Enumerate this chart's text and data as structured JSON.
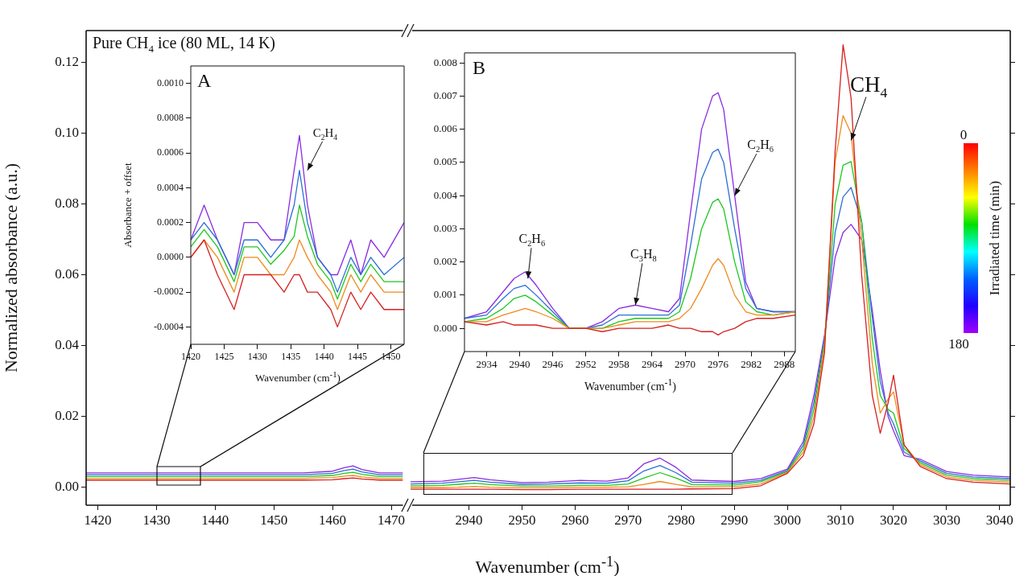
{
  "chart_data": [
    {
      "type": "line",
      "ylabel": "Normalized absorbance (a.u.)",
      "xlim": [
        1418,
        1472
      ],
      "ylim": [
        -0.005,
        0.129
      ],
      "xticks": [
        1420,
        1430,
        1440,
        1450,
        1460,
        1470
      ],
      "yticks": [
        {
          "value": 0,
          "label": "0.00"
        },
        {
          "value": 0.02,
          "label": "0.02"
        },
        {
          "value": 0.04,
          "label": "0.04"
        },
        {
          "value": 0.06,
          "label": "0.06"
        },
        {
          "value": 0.08,
          "label": "0.08"
        },
        {
          "value": 0.1,
          "label": "0.10"
        },
        {
          "value": 0.12,
          "label": "0.12"
        }
      ],
      "annotations": [
        "Pure CH$_{4}$ ice (80 ML, 14 K)"
      ],
      "series": [
        {
          "color": "#d62020",
          "x": [
            1418,
            1425,
            1435,
            1445,
            1455,
            1460,
            1462,
            1463.5,
            1465,
            1468,
            1472
          ],
          "values": [
            0.0021,
            0.0021,
            0.0021,
            0.0021,
            0.0021,
            0.0022,
            0.0025,
            0.0027,
            0.0024,
            0.0021,
            0.0021
          ]
        },
        {
          "color": "#f08a1c",
          "x": [
            1418,
            1425,
            1435,
            1445,
            1455,
            1460,
            1462,
            1463.5,
            1465,
            1468,
            1472
          ],
          "values": [
            0.0026,
            0.0026,
            0.0026,
            0.0026,
            0.0026,
            0.0028,
            0.0032,
            0.0034,
            0.003,
            0.0026,
            0.0026
          ]
        },
        {
          "color": "#1ec81e",
          "x": [
            1418,
            1425,
            1435,
            1445,
            1455,
            1460,
            1462,
            1463.5,
            1465,
            1468,
            1472
          ],
          "values": [
            0.0031,
            0.0031,
            0.0031,
            0.0031,
            0.0031,
            0.0034,
            0.004,
            0.0043,
            0.0037,
            0.0031,
            0.0031
          ]
        },
        {
          "color": "#2b6fd6",
          "x": [
            1418,
            1425,
            1435,
            1445,
            1455,
            1460,
            1462,
            1463.5,
            1465,
            1468,
            1472
          ],
          "values": [
            0.0036,
            0.0036,
            0.0036,
            0.0036,
            0.0036,
            0.004,
            0.0048,
            0.0052,
            0.0044,
            0.0036,
            0.0036
          ]
        },
        {
          "color": "#8a2be2",
          "x": [
            1418,
            1425,
            1435,
            1445,
            1455,
            1460,
            1462,
            1463.5,
            1465,
            1468,
            1472
          ],
          "values": [
            0.0041,
            0.0041,
            0.0041,
            0.0041,
            0.0041,
            0.0046,
            0.0056,
            0.0061,
            0.0051,
            0.0041,
            0.0041
          ]
        }
      ]
    },
    {
      "type": "line",
      "xlabel": "Wavenumber (cm$^{-1}$)",
      "tick_labels": "x",
      "clabel": "Irradiated time (min)",
      "xlim": [
        2929,
        3042
      ],
      "ylim": [
        -0.005,
        0.129
      ],
      "xticks": [
        2940,
        2950,
        2960,
        2970,
        2980,
        2990,
        3000,
        3010,
        3020,
        3030,
        3040
      ],
      "yticks": [
        0,
        0.02,
        0.04,
        0.06,
        0.08,
        0.1,
        0.12
      ],
      "annotations": [
        {
          "text": "CH$_{4}$",
          "x": 3012,
          "y": 0.098
        },
        "0",
        "180"
      ],
      "series": [
        {
          "color": "#d62020",
          "x": [
            2929,
            2935,
            2938,
            2941,
            2944,
            2950,
            2955,
            2961,
            2966,
            2970,
            2973,
            2976,
            2979,
            2982,
            2990,
            2995,
            3000,
            3003,
            3005,
            3007,
            3009,
            3010.5,
            3012,
            3014,
            3016,
            3017.5,
            3019,
            3020,
            3022,
            3025,
            3030,
            3035,
            3042
          ],
          "values": [
            -0.0005,
            -0.0005,
            -0.0005,
            -0.0005,
            -0.0005,
            -0.0006,
            -0.0006,
            -0.0005,
            -0.0005,
            -0.0005,
            -0.0005,
            -0.0005,
            -0.0005,
            -0.0004,
            -0.0003,
            0.0005,
            0.004,
            0.009,
            0.018,
            0.038,
            0.095,
            0.125,
            0.11,
            0.06,
            0.026,
            0.0153,
            0.024,
            0.0317,
            0.012,
            0.006,
            0.0025,
            0.0015,
            0.001
          ]
        },
        {
          "color": "#f08a1c",
          "x": [
            2929,
            2935,
            2938,
            2941,
            2944,
            2950,
            2955,
            2961,
            2966,
            2970,
            2973,
            2976,
            2979,
            2982,
            2990,
            2995,
            3000,
            3003,
            3005,
            3007,
            3009,
            3010.5,
            3012,
            3014,
            3016,
            3017.5,
            3019,
            3020,
            3022,
            3025,
            3030,
            3035,
            3042
          ],
          "values": [
            0,
            0,
            0.0001,
            0.0003,
            0.0001,
            -0.0001,
            -0.0001,
            0.0001,
            0.0001,
            0.0002,
            0.0009,
            0.0017,
            0.0009,
            0.0002,
            0.0002,
            0.001,
            0.0043,
            0.01,
            0.02,
            0.04,
            0.092,
            0.105,
            0.1,
            0.07,
            0.035,
            0.021,
            0.025,
            0.027,
            0.012,
            0.0065,
            0.003,
            0.002,
            0.0015
          ]
        },
        {
          "color": "#1ec81e",
          "x": [
            2929,
            2935,
            2938,
            2941,
            2944,
            2950,
            2955,
            2961,
            2966,
            2970,
            2973,
            2976,
            2979,
            2982,
            2990,
            2995,
            3000,
            3003,
            3005,
            3007,
            3009,
            3010.5,
            3012,
            3014,
            3016,
            3017.5,
            3019,
            3020,
            3022,
            3025,
            3030,
            3035,
            3042
          ],
          "values": [
            0.0005,
            0.0006,
            0.0009,
            0.0012,
            0.0008,
            0.0004,
            0.0004,
            0.0006,
            0.0006,
            0.001,
            0.0027,
            0.0042,
            0.0027,
            0.0008,
            0.0007,
            0.0016,
            0.0045,
            0.011,
            0.022,
            0.041,
            0.08,
            0.091,
            0.092,
            0.075,
            0.042,
            0.026,
            0.022,
            0.021,
            0.011,
            0.007,
            0.0035,
            0.0025,
            0.002
          ]
        },
        {
          "color": "#2b6fd6",
          "x": [
            2929,
            2935,
            2938,
            2941,
            2944,
            2950,
            2955,
            2961,
            2966,
            2970,
            2973,
            2976,
            2979,
            2982,
            2990,
            2995,
            3000,
            3003,
            3005,
            3007,
            3009,
            3010.5,
            3012,
            3014,
            3016,
            3017.5,
            3019,
            3020,
            3022,
            3025,
            3030,
            3035,
            3042
          ],
          "values": [
            0.001,
            0.0012,
            0.0016,
            0.002,
            0.0015,
            0.0009,
            0.001,
            0.0013,
            0.0012,
            0.0019,
            0.0047,
            0.0062,
            0.0042,
            0.0015,
            0.0012,
            0.002,
            0.0048,
            0.012,
            0.024,
            0.042,
            0.072,
            0.082,
            0.0847,
            0.075,
            0.048,
            0.03,
            0.021,
            0.018,
            0.01,
            0.0075,
            0.004,
            0.003,
            0.0025
          ]
        },
        {
          "color": "#8a2be2",
          "x": [
            2929,
            2935,
            2938,
            2941,
            2944,
            2950,
            2955,
            2961,
            2966,
            2970,
            2973,
            2976,
            2979,
            2982,
            2990,
            2995,
            3000,
            3003,
            3005,
            3007,
            3009,
            3010.5,
            3012,
            3014,
            3016,
            3017.5,
            3019,
            3020,
            3022,
            3025,
            3030,
            3035,
            3042
          ],
          "values": [
            0.0016,
            0.0018,
            0.0023,
            0.0028,
            0.0022,
            0.0014,
            0.0015,
            0.002,
            0.0018,
            0.0027,
            0.0067,
            0.0083,
            0.0057,
            0.0021,
            0.0017,
            0.0025,
            0.0052,
            0.013,
            0.026,
            0.043,
            0.065,
            0.072,
            0.0743,
            0.07,
            0.05,
            0.033,
            0.02,
            0.016,
            0.009,
            0.008,
            0.0045,
            0.0035,
            0.003
          ]
        }
      ]
    },
    {
      "type": "line",
      "xlabel": "Wavenumber (cm$^{-1}$)",
      "ylabel": "Absorbance + offset",
      "xlim": [
        1420,
        1452
      ],
      "ylim": [
        -0.0005,
        0.0011
      ],
      "xticks": [
        1420,
        1425,
        1430,
        1435,
        1440,
        1445,
        1450
      ],
      "yticks": [
        {
          "value": -0.0004,
          "label": "-0.0004"
        },
        {
          "value": -0.0002,
          "label": "-0.0002"
        },
        {
          "value": 0,
          "label": "0.0000"
        },
        {
          "value": 0.0002,
          "label": "0.0002"
        },
        {
          "value": 0.0004,
          "label": "0.0004"
        },
        {
          "value": 0.0006,
          "label": "0.0006"
        },
        {
          "value": 0.0008,
          "label": "0.0008"
        },
        {
          "value": 0.001,
          "label": "0.0010"
        }
      ],
      "annotations": [
        "A",
        {
          "text": "C$_{2}$H$_{4}$",
          "x": 1437.5,
          "y": 0.0005
        }
      ],
      "series": [
        {
          "color": "#d62020",
          "x": [
            1420,
            1422,
            1424,
            1426.5,
            1428,
            1430,
            1432,
            1434,
            1435.5,
            1436.3,
            1437.5,
            1439,
            1441,
            1442,
            1444,
            1445.5,
            1447,
            1449,
            1452
          ],
          "values": [
            0,
            0.0001,
            -0.0001,
            -0.0003,
            -0.0001,
            -0.0001,
            -0.0001,
            -0.0002,
            -0.0001,
            -0.0001,
            -0.0002,
            -0.0002,
            -0.0003,
            -0.0004,
            -0.0002,
            -0.0003,
            -0.0002,
            -0.0003,
            -0.0003
          ]
        },
        {
          "color": "#f08a1c",
          "x": [
            1420,
            1422,
            1424,
            1426.5,
            1428,
            1430,
            1432,
            1434,
            1435.5,
            1436.3,
            1437.5,
            1439,
            1441,
            1442,
            1444,
            1445.5,
            1447,
            1449,
            1452
          ],
          "values": [
            0,
            0.0001,
            0,
            -0.0002,
            0,
            0,
            -0.0001,
            -0.0001,
            0,
            0.0001,
            0,
            -0.0001,
            -0.0002,
            -0.0003,
            -0.0001,
            -0.0002,
            -0.0001,
            -0.0002,
            -0.0002
          ]
        },
        {
          "color": "#1ec81e",
          "x": [
            1420,
            1422,
            1424,
            1426.5,
            1428,
            1430,
            1432,
            1434,
            1435.5,
            1436.3,
            1437.5,
            1439,
            1441,
            1442,
            1444,
            1445.5,
            1447,
            1449,
            1452
          ],
          "values": [
            6e-05,
            0.00016,
            6e-05,
            -0.00014,
            6e-05,
            6e-05,
            -4e-05,
            4e-05,
            0.00012,
            0.0003,
            0.00012,
            -4e-05,
            -0.00014,
            -0.00024,
            -4e-05,
            -0.00014,
            -4e-05,
            -0.00014,
            -0.00014
          ]
        },
        {
          "color": "#2b6fd6",
          "x": [
            1420,
            1422,
            1424,
            1426.5,
            1428,
            1430,
            1432,
            1434,
            1435.5,
            1436.3,
            1437.5,
            1439,
            1441,
            1442,
            1444,
            1445.5,
            1447,
            1449,
            1452
          ],
          "values": [
            0.0001,
            0.0002,
            0.0001,
            -0.0001,
            0.0001,
            0.0001,
            0,
            0.0001,
            0.0003,
            0.0005,
            0.0002,
            0,
            -0.0001,
            -0.0002,
            0,
            -0.0001,
            0,
            -0.0001,
            0
          ]
        },
        {
          "color": "#8a2be2",
          "x": [
            1420,
            1422,
            1424,
            1426.5,
            1428,
            1430,
            1432,
            1434,
            1435.5,
            1436.3,
            1437.5,
            1439,
            1441,
            1442,
            1444,
            1445.5,
            1447,
            1449,
            1452
          ],
          "values": [
            0.0001,
            0.0003,
            0.0001,
            -0.0001,
            0.0002,
            0.0002,
            0.0001,
            0.0001,
            0.0005,
            0.0007,
            0.0003,
            0,
            -0.0001,
            -0.0001,
            0.0001,
            -0.0001,
            0.0001,
            0,
            0.0002
          ]
        }
      ]
    },
    {
      "type": "line",
      "xlabel": "Wavenumber (cm$^{-1}$)",
      "xlim": [
        2930,
        2990
      ],
      "ylim": [
        -0.0007,
        0.0083
      ],
      "xticks": [
        2934,
        2940,
        2946,
        2952,
        2958,
        2964,
        2970,
        2976,
        2982,
        2988
      ],
      "yticks": [
        {
          "value": 0,
          "label": "0.000"
        },
        {
          "value": 0.001,
          "label": "0.001"
        },
        {
          "value": 0.002,
          "label": "0.002"
        },
        {
          "value": 0.003,
          "label": "0.003"
        },
        {
          "value": 0.004,
          "label": "0.004"
        },
        {
          "value": 0.005,
          "label": "0.005"
        },
        {
          "value": 0.006,
          "label": "0.006"
        },
        {
          "value": 0.007,
          "label": "0.007"
        },
        {
          "value": 0.008,
          "label": "0.008"
        }
      ],
      "annotations": [
        "B",
        {
          "text": "C$_{2}$H$_{6}$",
          "x": 2941.5,
          "y": 0.0015
        },
        {
          "text": "C$_{3}$H$_{8}$",
          "x": 2961,
          "y": 0.0007
        },
        {
          "text": "C$_{2}$H$_{6}$",
          "x": 2979,
          "y": 0.004
        }
      ],
      "series": [
        {
          "color": "#d62020",
          "x": [
            2930,
            2934,
            2937,
            2939,
            2941,
            2943,
            2946,
            2949,
            2952,
            2955,
            2958,
            2961,
            2964,
            2967,
            2969,
            2971,
            2973,
            2975,
            2976,
            2977,
            2979,
            2981,
            2983,
            2986,
            2990
          ],
          "values": [
            0.0002,
            0.0001,
            0.0002,
            0.0001,
            0.0001,
            0.0001,
            0,
            0,
            0,
            -0.0001,
            0,
            0,
            0,
            0.0001,
            0,
            0,
            -0.0001,
            -0.0001,
            -0.0002,
            -0.0001,
            0,
            0.0002,
            0.0003,
            0.0003,
            0.0004
          ]
        },
        {
          "color": "#f08a1c",
          "x": [
            2930,
            2934,
            2937,
            2939,
            2941,
            2943,
            2946,
            2949,
            2952,
            2955,
            2958,
            2961,
            2964,
            2967,
            2969,
            2971,
            2973,
            2975,
            2976,
            2977,
            2979,
            2981,
            2983,
            2986,
            2990
          ],
          "values": [
            0.0002,
            0.0002,
            0.0004,
            0.0005,
            0.0006,
            0.0005,
            0.0003,
            0,
            0,
            0,
            0.0001,
            0.0002,
            0.0002,
            0.0002,
            0.0003,
            0.0006,
            0.0012,
            0.0019,
            0.0021,
            0.0019,
            0.001,
            0.0005,
            0.0004,
            0.0004,
            0.0005
          ]
        },
        {
          "color": "#1ec81e",
          "x": [
            2930,
            2934,
            2937,
            2939,
            2941,
            2943,
            2946,
            2949,
            2952,
            2955,
            2958,
            2961,
            2964,
            2967,
            2969,
            2971,
            2973,
            2975,
            2976,
            2977,
            2979,
            2981,
            2983,
            2986,
            2990
          ],
          "values": [
            0.0002,
            0.0003,
            0.0006,
            0.0009,
            0.001,
            0.0008,
            0.0004,
            0,
            0,
            0,
            0.0002,
            0.0003,
            0.0003,
            0.0003,
            0.0005,
            0.0015,
            0.003,
            0.0038,
            0.0039,
            0.0036,
            0.002,
            0.0008,
            0.0005,
            0.0004,
            0.0005
          ]
        },
        {
          "color": "#2b6fd6",
          "x": [
            2930,
            2934,
            2937,
            2939,
            2941,
            2943,
            2946,
            2949,
            2952,
            2955,
            2958,
            2961,
            2964,
            2967,
            2969,
            2971,
            2973,
            2975,
            2976,
            2977,
            2979,
            2981,
            2983,
            2986,
            2990
          ],
          "values": [
            0.0003,
            0.0004,
            0.0009,
            0.0012,
            0.0013,
            0.001,
            0.0005,
            0,
            0,
            0.0001,
            0.0004,
            0.0004,
            0.0004,
            0.0004,
            0.0007,
            0.0025,
            0.0045,
            0.0053,
            0.0054,
            0.005,
            0.003,
            0.0012,
            0.0006,
            0.0005,
            0.0005
          ]
        },
        {
          "color": "#8a2be2",
          "x": [
            2930,
            2934,
            2937,
            2939,
            2941,
            2943,
            2946,
            2949,
            2952,
            2955,
            2958,
            2961,
            2964,
            2967,
            2969,
            2971,
            2973,
            2975,
            2976,
            2977,
            2979,
            2981,
            2983,
            2986,
            2990
          ],
          "values": [
            0.0003,
            0.0005,
            0.0011,
            0.0015,
            0.0017,
            0.0013,
            0.0006,
            0,
            0,
            0.0002,
            0.0006,
            0.0007,
            0.0006,
            0.0005,
            0.0009,
            0.0035,
            0.006,
            0.007,
            0.0071,
            0.0066,
            0.004,
            0.0014,
            0.0006,
            0.0005,
            0.0005
          ]
        }
      ]
    }
  ]
}
